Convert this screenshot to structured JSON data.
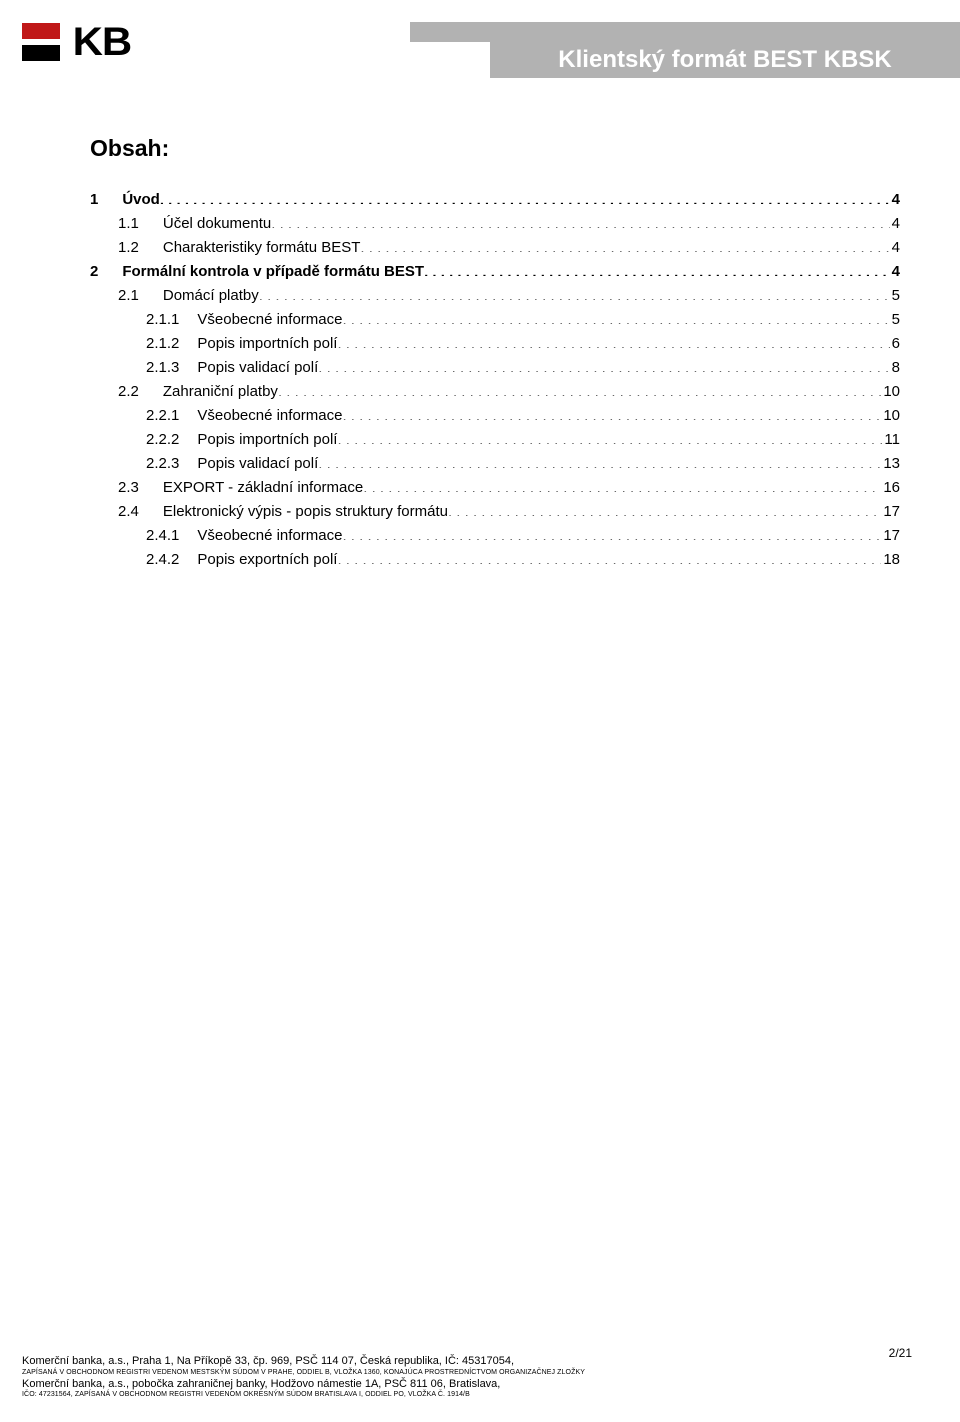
{
  "header": {
    "logo_text": "KB",
    "title": "Klientský formát BEST KBSK"
  },
  "content": {
    "heading": "Obsah:",
    "toc": [
      {
        "num": "1",
        "label": "Úvod",
        "page": "4",
        "indent": 0,
        "bold": true,
        "gap": 24
      },
      {
        "num": "1.1",
        "label": "Účel dokumentu",
        "page": "4",
        "indent": 1,
        "bold": false,
        "gap": 24
      },
      {
        "num": "1.2",
        "label": "Charakteristiky formátu BEST",
        "page": "4",
        "indent": 1,
        "bold": false,
        "gap": 24
      },
      {
        "num": "2",
        "label": "Formální kontrola v případě formátu BEST",
        "page": "4",
        "indent": 0,
        "bold": true,
        "gap": 24
      },
      {
        "num": "2.1",
        "label": "Domácí platby",
        "page": "5",
        "indent": 1,
        "bold": false,
        "gap": 24
      },
      {
        "num": "2.1.1",
        "label": "Všeobecné informace",
        "page": "5",
        "indent": 2,
        "bold": false,
        "gap": 18
      },
      {
        "num": "2.1.2",
        "label": "Popis importních polí",
        "page": "6",
        "indent": 2,
        "bold": false,
        "gap": 18
      },
      {
        "num": "2.1.3",
        "label": "Popis validací polí",
        "page": "8",
        "indent": 2,
        "bold": false,
        "gap": 18
      },
      {
        "num": "2.2",
        "label": "Zahraniční platby",
        "page": "10",
        "indent": 1,
        "bold": false,
        "gap": 24
      },
      {
        "num": "2.2.1",
        "label": "Všeobecné informace",
        "page": "10",
        "indent": 2,
        "bold": false,
        "gap": 18
      },
      {
        "num": "2.2.2",
        "label": "Popis importních polí",
        "page": "11",
        "indent": 2,
        "bold": false,
        "gap": 18
      },
      {
        "num": "2.2.3",
        "label": "Popis validací polí",
        "page": "13",
        "indent": 2,
        "bold": false,
        "gap": 18
      },
      {
        "num": "2.3",
        "label": "EXPORT - základní informace",
        "page": "16",
        "indent": 1,
        "bold": false,
        "gap": 24
      },
      {
        "num": "2.4",
        "label": "Elektronický výpis - popis struktury formátu",
        "page": "17",
        "indent": 1,
        "bold": false,
        "gap": 24
      },
      {
        "num": "2.4.1",
        "label": "Všeobecné informace",
        "page": "17",
        "indent": 2,
        "bold": false,
        "gap": 18
      },
      {
        "num": "2.4.2",
        "label": "Popis exportních polí",
        "page": "18",
        "indent": 2,
        "bold": false,
        "gap": 18
      }
    ]
  },
  "footer": {
    "line1": "Komerční banka, a.s., Praha 1, Na Příkopě 33, čp. 969, PSČ 114 07, Česká republika, IČ: 45317054,",
    "line2": "ZAPÍSANÁ V OBCHODNOM REGISTRI VEDENOM MESTSKÝM SÚDOM V PRAHE, ODDIEL B, VLOŽKA 1360,  KONAJÚCA PROSTREDNÍCTVOM ORGANIZAČNEJ ZLOŽKY",
    "line3": "Komerční banka, a.s., pobočka zahraničnej banky, Hodžovo námestie 1A, PSČ 811 06, Bratislava,",
    "line4": "IČO: 47231564, ZAPÍSANÁ V OBCHODNOM REGISTRI VEDENOM OKRESNÝM SÚDOM BRATISLAVA I, ODDIEL PO, VLOŽKA Č. 1914/B",
    "page_number": "2/21"
  }
}
